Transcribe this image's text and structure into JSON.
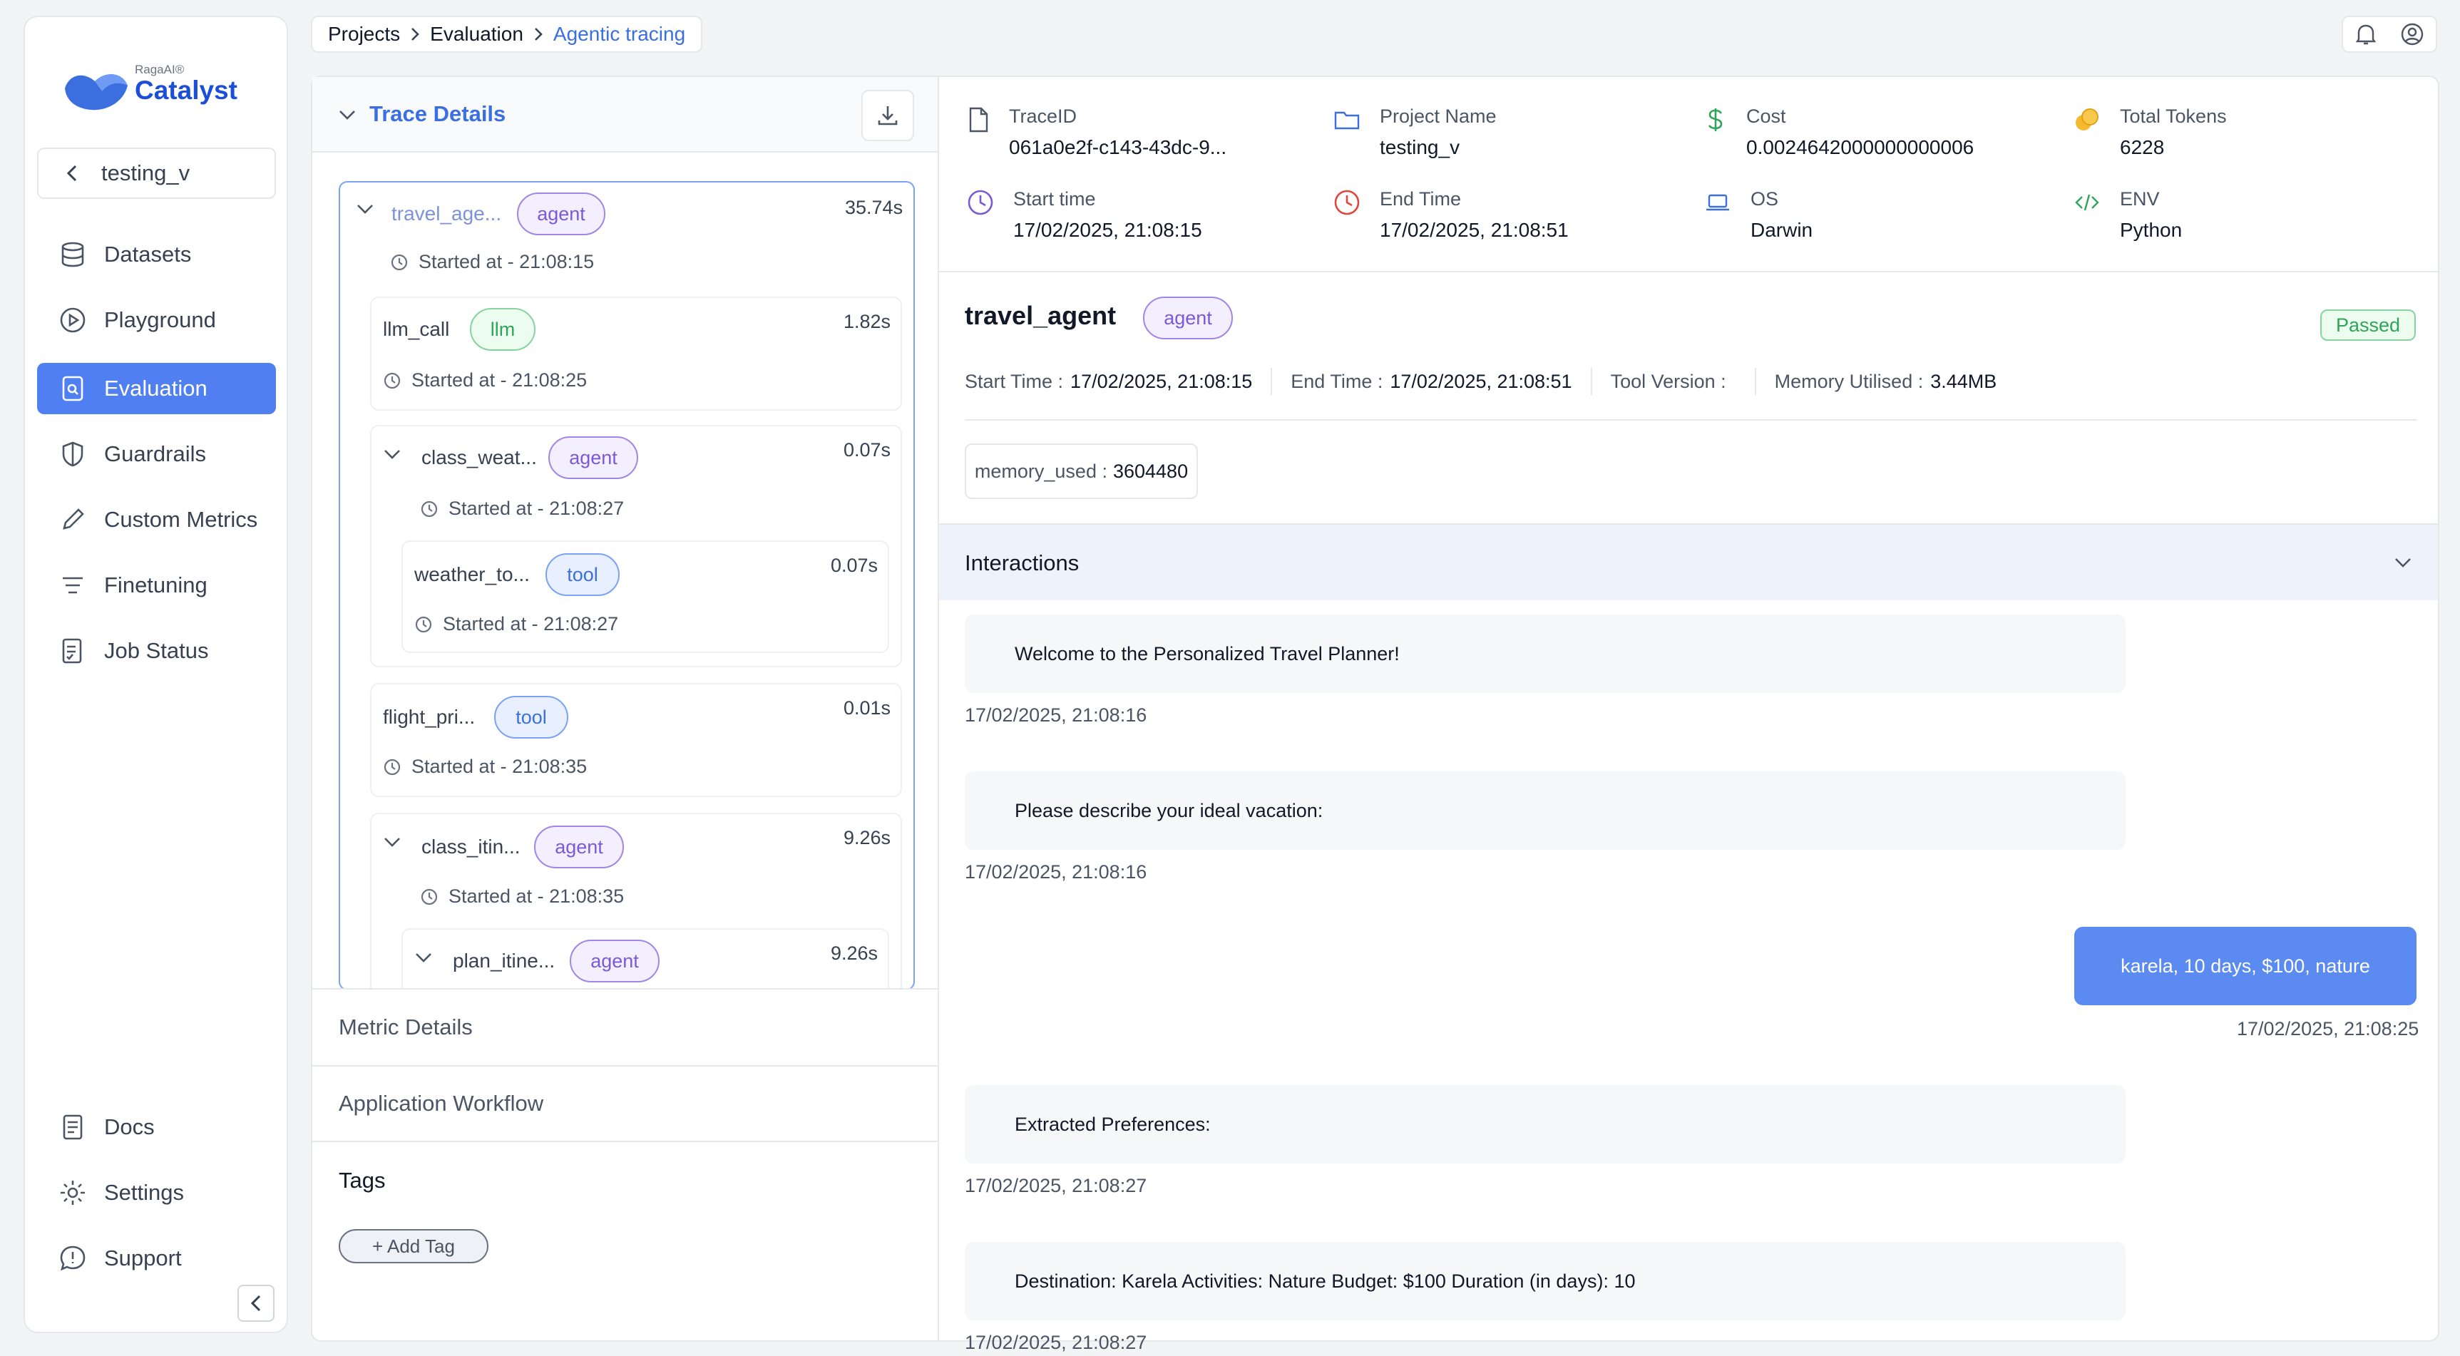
{
  "app": {
    "brand_small": "RagaAI®",
    "brand_name": "Catalyst"
  },
  "sidebar": {
    "project": "testing_v",
    "items": [
      {
        "label": "Datasets",
        "icon": "database-icon"
      },
      {
        "label": "Playground",
        "icon": "play-circle-icon"
      },
      {
        "label": "Evaluation",
        "icon": "evaluation-icon",
        "active": true
      },
      {
        "label": "Guardrails",
        "icon": "shield-icon"
      },
      {
        "label": "Custom Metrics",
        "icon": "pencil-icon"
      },
      {
        "label": "Finetuning",
        "icon": "filter-lines-icon"
      },
      {
        "label": "Job Status",
        "icon": "checklist-icon"
      }
    ],
    "bottom_items": [
      {
        "label": "Docs",
        "icon": "document-icon"
      },
      {
        "label": "Settings",
        "icon": "gear-icon"
      },
      {
        "label": "Support",
        "icon": "chat-help-icon"
      }
    ]
  },
  "breadcrumb": [
    "Projects",
    "Evaluation",
    "Agentic tracing"
  ],
  "trace_details": {
    "title": "Trace Details",
    "nodes": [
      {
        "name": "travel_age...",
        "type": "agent",
        "duration": "35.74s",
        "started": "Started at - 21:08:15"
      },
      {
        "name": "llm_call",
        "type": "llm",
        "duration": "1.82s",
        "started": "Started at - 21:08:25"
      },
      {
        "name": "class_weat...",
        "type": "agent",
        "duration": "0.07s",
        "started": "Started at - 21:08:27"
      },
      {
        "name": "weather_to...",
        "type": "tool",
        "duration": "0.07s",
        "started": "Started at - 21:08:27"
      },
      {
        "name": "flight_pri...",
        "type": "tool",
        "duration": "0.01s",
        "started": "Started at - 21:08:35"
      },
      {
        "name": "class_itin...",
        "type": "agent",
        "duration": "9.26s",
        "started": "Started at - 21:08:35"
      },
      {
        "name": "plan_itine...",
        "type": "agent",
        "duration": "9.26s",
        "started": ""
      }
    ],
    "sections": [
      "Metric Details",
      "Application Workflow"
    ],
    "tags_title": "Tags",
    "add_tag": "+ Add Tag"
  },
  "meta": {
    "trace_id": {
      "label": "TraceID",
      "value": "061a0e2f-c143-43dc-9..."
    },
    "project_name": {
      "label": "Project Name",
      "value": "testing_v"
    },
    "cost": {
      "label": "Cost",
      "value": "0.0024642000000000006"
    },
    "total_tokens": {
      "label": "Total Tokens",
      "value": "6228"
    },
    "start_time": {
      "label": "Start time",
      "value": "17/02/2025, 21:08:15"
    },
    "end_time": {
      "label": "End Time",
      "value": "17/02/2025, 21:08:51"
    },
    "os": {
      "label": "OS",
      "value": "Darwin"
    },
    "env": {
      "label": "ENV",
      "value": "Python"
    }
  },
  "span": {
    "name": "travel_agent",
    "type": "agent",
    "status": "Passed",
    "start_label": "Start Time :",
    "start_value": "17/02/2025, 21:08:15",
    "end_label": "End Time :",
    "end_value": "17/02/2025, 21:08:51",
    "tool_version_label": "Tool Version :",
    "memory_label": "Memory Utilised :",
    "memory_value": "3.44MB",
    "memory_used_label": "memory_used :",
    "memory_used_value": "3604480"
  },
  "interactions": {
    "title": "Interactions",
    "messages": [
      {
        "text": "Welcome to the Personalized Travel Planner!",
        "time": "17/02/2025, 21:08:16"
      },
      {
        "text": "Please describe your ideal vacation:",
        "time": "17/02/2025, 21:08:16"
      },
      {
        "text": "karela, 10 days, $100, nature",
        "time": "17/02/2025, 21:08:25",
        "user": true
      },
      {
        "text": "Extracted Preferences:",
        "time": "17/02/2025, 21:08:27"
      },
      {
        "text": "Destination: Karela Activities: Nature Budget: $100 Duration (in days): 10",
        "time": "17/02/2025, 21:08:27"
      }
    ]
  },
  "colors": {
    "accent": "#4f7ff0",
    "link": "#3b6fe0",
    "agent": "#7a5ad6",
    "llm": "#2fa45a",
    "passed": "#2fa45a"
  }
}
